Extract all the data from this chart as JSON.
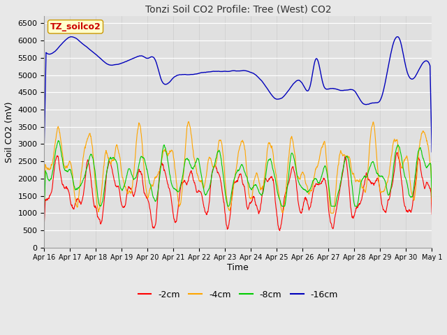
{
  "title": "Tonzi Soil CO2 Profile: Tree (West) CO2",
  "xlabel": "Time",
  "ylabel": "Soil CO2 (mV)",
  "watermark": "TZ_soilco2",
  "ylim": [
    0,
    6700
  ],
  "yticks": [
    0,
    500,
    1000,
    1500,
    2000,
    2500,
    3000,
    3500,
    4000,
    4500,
    5000,
    5500,
    6000,
    6500
  ],
  "colors": {
    "m2cm": "#ff0000",
    "m4cm": "#ffa500",
    "m8cm": "#00cc00",
    "m16cm": "#0000bb"
  },
  "legend_labels": [
    "-2cm",
    "-4cm",
    "-8cm",
    "-16cm"
  ],
  "bg_color": "#e8e8e8",
  "plot_bg": "#e0e0e0",
  "x_tick_labels": [
    "Apr 16",
    "Apr 17",
    "Apr 18",
    "Apr 19",
    "Apr 20",
    "Apr 21",
    "Apr 22",
    "Apr 23",
    "Apr 24",
    "Apr 25",
    "Apr 26",
    "Apr 27",
    "Apr 28",
    "Apr 29",
    "Apr 30",
    "May 1"
  ],
  "figsize": [
    6.4,
    4.8
  ],
  "dpi": 100
}
